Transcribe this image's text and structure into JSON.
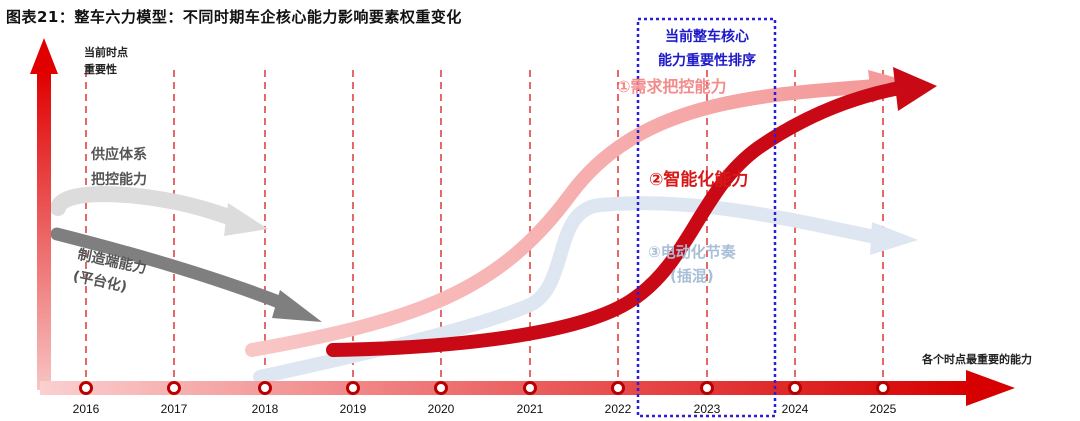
{
  "title": "图表21：整车六力模型：不同时期车企核心能力影响要素权重变化",
  "axis": {
    "y_label_line1": "当前时点",
    "y_label_line2": "重要性",
    "x_label": "各个时点最重要的能力"
  },
  "years": [
    "2016",
    "2017",
    "2018",
    "2019",
    "2020",
    "2021",
    "2022",
    "2023",
    "2024",
    "2025"
  ],
  "labels": {
    "supply_line1": "供应体系",
    "supply_line2": "把控能力",
    "mfg_line1": "制造端能力",
    "mfg_line2": "(平台化)",
    "box_line1": "当前整车核心",
    "box_line2": "能力重要性排序",
    "cap1": "①需求把控能力",
    "cap2": "②智能化能力",
    "cap3_line1": "③电动化节奏",
    "cap3_line2": "(插混)"
  },
  "colors": {
    "axis_red": "#e00000",
    "demand": "#f6b3b3",
    "intelligent": "#c90a16",
    "electric": "#dde6f1",
    "supply": "#dcdcdc",
    "manufacturing": "#7f7f7f",
    "highlight_box": "#2a1fd6"
  }
}
